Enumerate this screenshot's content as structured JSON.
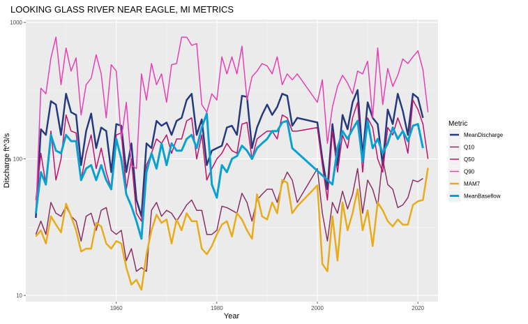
{
  "chart_data": {
    "type": "line",
    "title": "LOOKING GLASS RIVER NEAR EAGLE, MI  METRICS",
    "xlabel": "Year",
    "ylabel": "Discharge ft^3/s",
    "y_scale": "log10",
    "xlim": [
      1942,
      2024
    ],
    "ylim": [
      9,
      1050
    ],
    "x_ticks": [
      1960,
      1980,
      2000,
      2020
    ],
    "y_ticks": [
      10,
      100,
      1000
    ],
    "y_tick_labels": [
      "10",
      "100",
      "1000"
    ],
    "grid": true,
    "legend_position": "right",
    "legend_title": "Metric",
    "series": [
      {
        "name": "MeanDischarge",
        "color": "#253a7e",
        "width": 2.5,
        "x": [
          1944,
          1945,
          1946,
          1947,
          1948,
          1949,
          1950,
          1951,
          1952,
          1953,
          1954,
          1955,
          1956,
          1957,
          1958,
          1959,
          1960,
          1961,
          1962,
          1963,
          1964,
          1965,
          1966,
          1967,
          1968,
          1969,
          1970,
          1971,
          1972,
          1973,
          1974,
          1975,
          1976,
          1977,
          1978,
          1979,
          1980,
          1981,
          1982,
          1983,
          1984,
          1985,
          1986,
          1987,
          1988,
          1989,
          1990,
          1991,
          1992,
          1993,
          1994,
          1995,
          1996,
          2000,
          2001,
          2002,
          2003,
          2004,
          2005,
          2006,
          2007,
          2008,
          2009,
          2010,
          2011,
          2012,
          2013,
          2014,
          2015,
          2016,
          2017,
          2018,
          2019,
          2020,
          2021
        ],
        "values": [
          37,
          165,
          150,
          265,
          250,
          150,
          300,
          220,
          210,
          90,
          160,
          215,
          120,
          170,
          160,
          80,
          180,
          175,
          80,
          130,
          50,
          38,
          130,
          120,
          190,
          175,
          185,
          150,
          190,
          200,
          270,
          300,
          150,
          195,
          90,
          115,
          120,
          125,
          170,
          175,
          150,
          290,
          285,
          120,
          170,
          210,
          250,
          210,
          240,
          300,
          290,
          175,
          200,
          185,
          100,
          60,
          180,
          90,
          210,
          165,
          260,
          320,
          105,
          260,
          200,
          180,
          90,
          230,
          180,
          300,
          225,
          150,
          300,
          280,
          200
        ]
      },
      {
        "name": "Q10",
        "color": "#8b3066",
        "width": 1.5,
        "x": [
          1944,
          1945,
          1946,
          1947,
          1948,
          1949,
          1950,
          1951,
          1952,
          1953,
          1954,
          1955,
          1956,
          1957,
          1958,
          1959,
          1960,
          1961,
          1962,
          1963,
          1964,
          1965,
          1966,
          1967,
          1968,
          1969,
          1970,
          1971,
          1972,
          1973,
          1974,
          1975,
          1976,
          1977,
          1978,
          1979,
          1980,
          1981,
          1982,
          1983,
          1984,
          1985,
          1986,
          1987,
          1988,
          1989,
          1990,
          1991,
          1992,
          1993,
          1994,
          1995,
          1996,
          2000,
          2001,
          2002,
          2003,
          2004,
          2005,
          2006,
          2007,
          2008,
          2009,
          2010,
          2011,
          2012,
          2013,
          2014,
          2015,
          2016,
          2017,
          2018,
          2019,
          2020,
          2021
        ],
        "values": [
          28,
          35,
          28,
          48,
          40,
          38,
          45,
          38,
          35,
          25,
          38,
          40,
          30,
          42,
          44,
          30,
          28,
          30,
          18,
          22,
          15,
          16,
          15,
          42,
          48,
          38,
          42,
          40,
          35,
          40,
          46,
          50,
          42,
          42,
          28,
          28,
          30,
          45,
          44,
          42,
          40,
          56,
          48,
          35,
          50,
          55,
          60,
          60,
          48,
          66,
          80,
          70,
          48,
          85,
          40,
          25,
          48,
          40,
          58,
          43,
          55,
          85,
          40,
          70,
          60,
          45,
          100,
          65,
          60,
          44,
          46,
          52,
          70,
          68,
          72
        ]
      },
      {
        "name": "Q50",
        "color": "#c2106b",
        "width": 1.5,
        "x": [
          1944,
          1945,
          1946,
          1947,
          1948,
          1949,
          1950,
          1951,
          1952,
          1953,
          1954,
          1955,
          1956,
          1957,
          1958,
          1959,
          1960,
          1961,
          1962,
          1963,
          1964,
          1965,
          1966,
          1967,
          1968,
          1969,
          1970,
          1971,
          1972,
          1973,
          1974,
          1975,
          1976,
          1977,
          1978,
          1979,
          1980,
          1981,
          1982,
          1983,
          1984,
          1985,
          1986,
          1987,
          1988,
          1989,
          1990,
          1991,
          1992,
          1993,
          1994,
          1995,
          1996,
          2000,
          2001,
          2002,
          2003,
          2004,
          2005,
          2006,
          2007,
          2008,
          2009,
          2010,
          2011,
          2012,
          2013,
          2014,
          2015,
          2016,
          2017,
          2018,
          2019,
          2020,
          2021,
          2022
        ],
        "values": [
          50,
          110,
          65,
          160,
          70,
          100,
          210,
          160,
          155,
          70,
          110,
          150,
          85,
          120,
          80,
          60,
          150,
          155,
          60,
          100,
          40,
          35,
          90,
          110,
          140,
          130,
          150,
          110,
          140,
          140,
          190,
          200,
          100,
          150,
          70,
          85,
          100,
          110,
          130,
          115,
          110,
          180,
          185,
          100,
          140,
          150,
          160,
          160,
          140,
          210,
          200,
          160,
          160,
          170,
          90,
          50,
          160,
          80,
          150,
          120,
          200,
          260,
          80,
          200,
          170,
          100,
          80,
          170,
          150,
          200,
          160,
          110,
          270,
          230,
          180,
          100
        ]
      },
      {
        "name": "Q90",
        "color": "#e83fb4",
        "width": 1.5,
        "x": [
          1944,
          1945,
          1946,
          1947,
          1948,
          1949,
          1950,
          1951,
          1952,
          1953,
          1954,
          1955,
          1956,
          1957,
          1958,
          1959,
          1960,
          1961,
          1962,
          1963,
          1964,
          1965,
          1966,
          1967,
          1968,
          1969,
          1970,
          1971,
          1972,
          1973,
          1974,
          1975,
          1976,
          1977,
          1978,
          1979,
          1980,
          1981,
          1982,
          1983,
          1984,
          1985,
          1986,
          1987,
          1988,
          1989,
          1990,
          1991,
          1992,
          1993,
          1994,
          1995,
          1996,
          2000,
          2001,
          2002,
          2003,
          2004,
          2005,
          2006,
          2007,
          2008,
          2009,
          2010,
          2011,
          2012,
          2013,
          2014,
          2015,
          2016,
          2017,
          2018,
          2019,
          2020,
          2021,
          2022
        ],
        "values": [
          40,
          330,
          300,
          550,
          780,
          350,
          650,
          440,
          550,
          210,
          350,
          390,
          580,
          420,
          200,
          490,
          440,
          140,
          260,
          90,
          85,
          420,
          270,
          500,
          350,
          420,
          260,
          490,
          500,
          780,
          780,
          680,
          700,
          250,
          220,
          300,
          270,
          560,
          420,
          560,
          420,
          670,
          270,
          400,
          440,
          500,
          480,
          420,
          560,
          350,
          420,
          380,
          420,
          260,
          380,
          130,
          240,
          340,
          410,
          360,
          300,
          440,
          420,
          520,
          200,
          650,
          250,
          460,
          340,
          410,
          540,
          500,
          560,
          620,
          450,
          220
        ]
      },
      {
        "name": "MAM7",
        "color": "#e8ac1a",
        "width": 2.5,
        "x": [
          1944,
          1945,
          1946,
          1947,
          1948,
          1949,
          1950,
          1951,
          1952,
          1953,
          1954,
          1955,
          1956,
          1957,
          1958,
          1959,
          1960,
          1961,
          1962,
          1963,
          1964,
          1965,
          1966,
          1967,
          1968,
          1969,
          1970,
          1971,
          1972,
          1973,
          1974,
          1975,
          1976,
          1977,
          1978,
          1979,
          1980,
          1981,
          1982,
          1983,
          1984,
          1985,
          1986,
          1987,
          1988,
          1989,
          1990,
          1991,
          1992,
          1993,
          1994,
          1995,
          1996,
          2000,
          2001,
          2002,
          2003,
          2004,
          2005,
          2006,
          2007,
          2008,
          2009,
          2010,
          2011,
          2012,
          2013,
          2014,
          2015,
          2016,
          2017,
          2018,
          2019,
          2020,
          2021,
          2022
        ],
        "values": [
          27,
          30,
          24,
          38,
          33,
          29,
          47,
          38,
          30,
          21,
          22,
          22,
          34,
          32,
          24,
          22,
          25,
          24,
          16,
          12,
          13,
          11,
          20,
          30,
          39,
          34,
          36,
          24,
          36,
          30,
          40,
          35,
          35,
          22,
          20,
          23,
          28,
          33,
          35,
          27,
          40,
          36,
          30,
          26,
          55,
          38,
          36,
          48,
          40,
          70,
          67,
          40,
          45,
          64,
          17,
          15,
          38,
          18,
          48,
          30,
          40,
          60,
          30,
          42,
          23,
          48,
          42,
          35,
          32,
          36,
          33,
          33,
          46,
          49,
          50,
          86
        ]
      },
      {
        "name": "MeanBaseflow",
        "color": "#09a2d0",
        "width": 3,
        "x": [
          1944,
          1945,
          1946,
          1947,
          1948,
          1949,
          1950,
          1951,
          1952,
          1953,
          1954,
          1955,
          1956,
          1957,
          1958,
          1959,
          1960,
          1961,
          1962,
          1963,
          1964,
          1965,
          1966,
          1967,
          1968,
          1969,
          1970,
          1971,
          1972,
          1973,
          1974,
          1975,
          1976,
          1977,
          1978,
          1979,
          1980,
          1981,
          1982,
          1983,
          1984,
          1985,
          1986,
          1987,
          1988,
          1989,
          1990,
          1991,
          1992,
          1993,
          1994,
          1995,
          2003,
          2004,
          2005,
          2006,
          2007,
          2008,
          2009,
          2010,
          2011,
          2012,
          2013,
          2014,
          2015,
          2016,
          2017,
          2018,
          2019,
          2020,
          2021
        ],
        "values": [
          40,
          80,
          65,
          150,
          115,
          110,
          150,
          135,
          135,
          70,
          85,
          90,
          70,
          90,
          70,
          60,
          140,
          100,
          55,
          45,
          35,
          26,
          80,
          110,
          85,
          130,
          90,
          130,
          115,
          115,
          140,
          150,
          120,
          170,
          215,
          65,
          52,
          90,
          80,
          100,
          105,
          125,
          115,
          100,
          120,
          130,
          140,
          160,
          160,
          185,
          190,
          120,
          65,
          120,
          160,
          140,
          165,
          190,
          95,
          190,
          120,
          140,
          110,
          130,
          170,
          140,
          160,
          135,
          175,
          180,
          120
        ]
      }
    ]
  }
}
